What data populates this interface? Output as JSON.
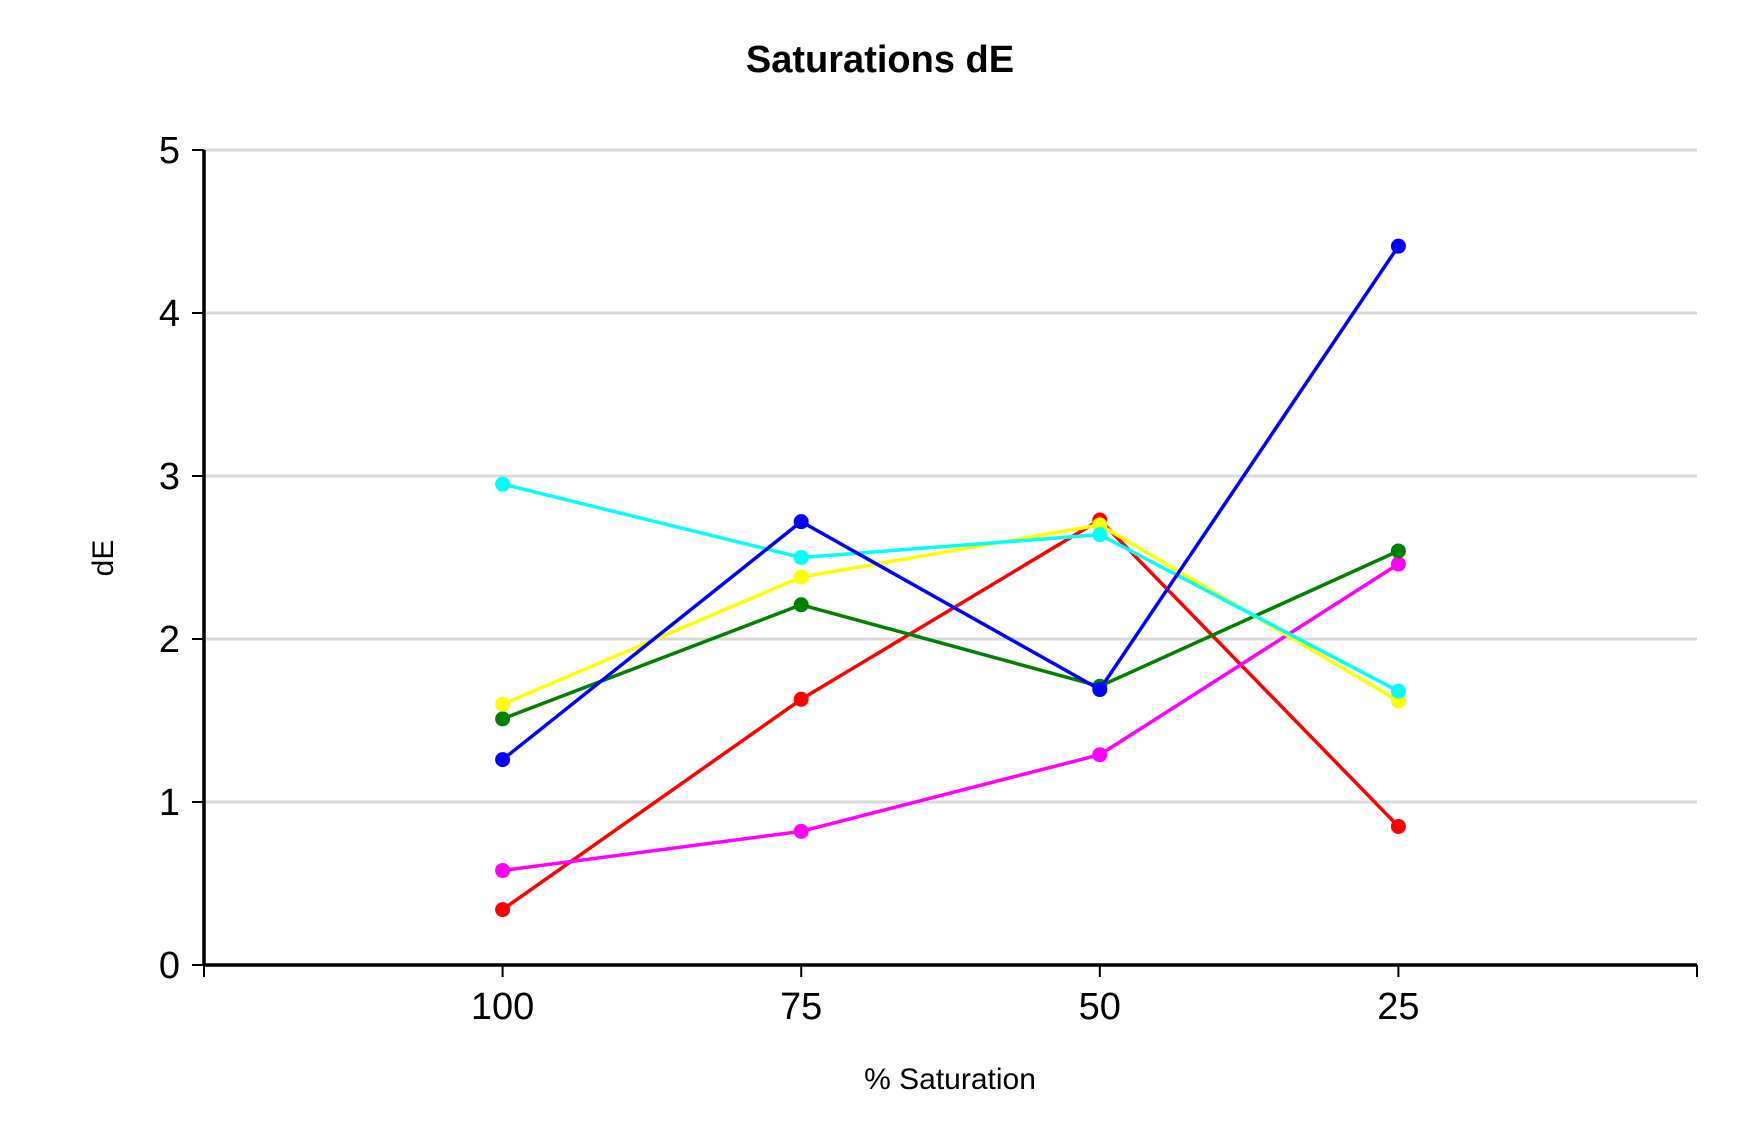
{
  "chart_data": {
    "type": "line",
    "title": "Saturations dE",
    "xlabel": "% Saturation",
    "ylabel": "dE",
    "categories": [
      "100",
      "75",
      "50",
      "25"
    ],
    "ylim": [
      0,
      5
    ],
    "yticks": [
      "0",
      "1",
      "2",
      "3",
      "4",
      "5"
    ],
    "grid": true,
    "legend": "none",
    "series": [
      {
        "color": "#ff0000",
        "values": [
          0.34,
          1.63,
          2.73,
          0.85
        ]
      },
      {
        "color": "#ff00ff",
        "values": [
          0.58,
          0.82,
          1.29,
          2.46
        ]
      },
      {
        "color": "#008000",
        "values": [
          1.51,
          2.21,
          1.71,
          2.54
        ]
      },
      {
        "color": "#ffff00",
        "values": [
          1.6,
          2.38,
          2.7,
          1.62
        ]
      },
      {
        "color": "#00ffff",
        "values": [
          2.95,
          2.5,
          2.64,
          1.68
        ]
      },
      {
        "color": "#0000ff",
        "values": [
          1.26,
          2.72,
          1.69,
          4.41
        ]
      }
    ]
  }
}
